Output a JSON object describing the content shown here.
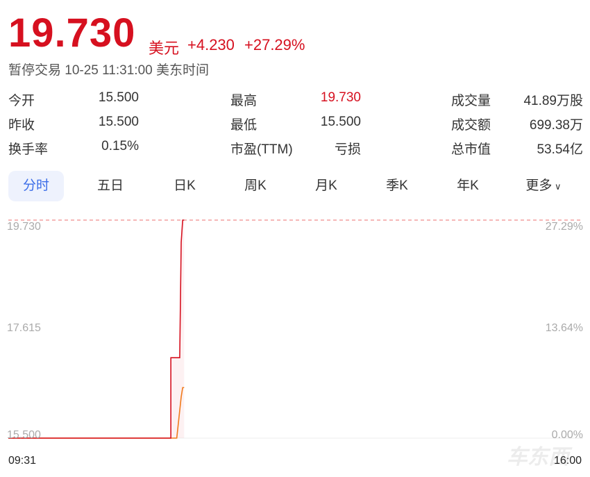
{
  "quote": {
    "price": "19.730",
    "currency": "美元",
    "change": "+4.230",
    "change_pct": "+27.29%",
    "status": "暂停交易 10-25 11:31:00 美东时间"
  },
  "stats": [
    {
      "label": "今开",
      "value": "15.500"
    },
    {
      "label": "最高",
      "value": "19.730",
      "color": "#d6101f"
    },
    {
      "label": "成交量",
      "value": "41.89万股"
    },
    {
      "label": "昨收",
      "value": "15.500"
    },
    {
      "label": "最低",
      "value": "15.500"
    },
    {
      "label": "成交额",
      "value": "699.38万"
    },
    {
      "label": "换手率",
      "value": "0.15%"
    },
    {
      "label": "市盈(TTM)",
      "value": "亏损"
    },
    {
      "label": "总市值",
      "value": "53.54亿"
    }
  ],
  "tabs": [
    {
      "label": "分时",
      "active": true
    },
    {
      "label": "五日"
    },
    {
      "label": "日K"
    },
    {
      "label": "周K"
    },
    {
      "label": "月K"
    },
    {
      "label": "季K"
    },
    {
      "label": "年K"
    },
    {
      "label": "更多"
    }
  ],
  "chart_data": {
    "type": "line",
    "y_left_ticks": [
      "19.730",
      "17.615",
      "15.500"
    ],
    "y_right_ticks": [
      "27.29%",
      "13.64%",
      "0.00%"
    ],
    "x_ticks": [
      "09:31",
      "16:00"
    ],
    "ylim": [
      15.5,
      19.73
    ],
    "xlim": [
      "09:31",
      "16:00"
    ],
    "high_ref_line": 19.73,
    "series": [
      {
        "color": "#d6101f",
        "points": [
          [
            "09:31",
            15.5
          ],
          [
            "11:21",
            15.5
          ],
          [
            "11:21",
            17.06
          ],
          [
            "11:27",
            17.06
          ],
          [
            "11:28",
            19.3
          ],
          [
            "11:29",
            19.73
          ],
          [
            "11:30",
            19.73
          ]
        ]
      },
      {
        "color": "#f07a1a",
        "points": [
          [
            "09:31",
            15.5
          ],
          [
            "11:25",
            15.5
          ],
          [
            "11:28",
            16.3
          ],
          [
            "11:29",
            16.48
          ],
          [
            "11:30",
            16.48
          ]
        ]
      }
    ]
  },
  "watermark": "车东西"
}
